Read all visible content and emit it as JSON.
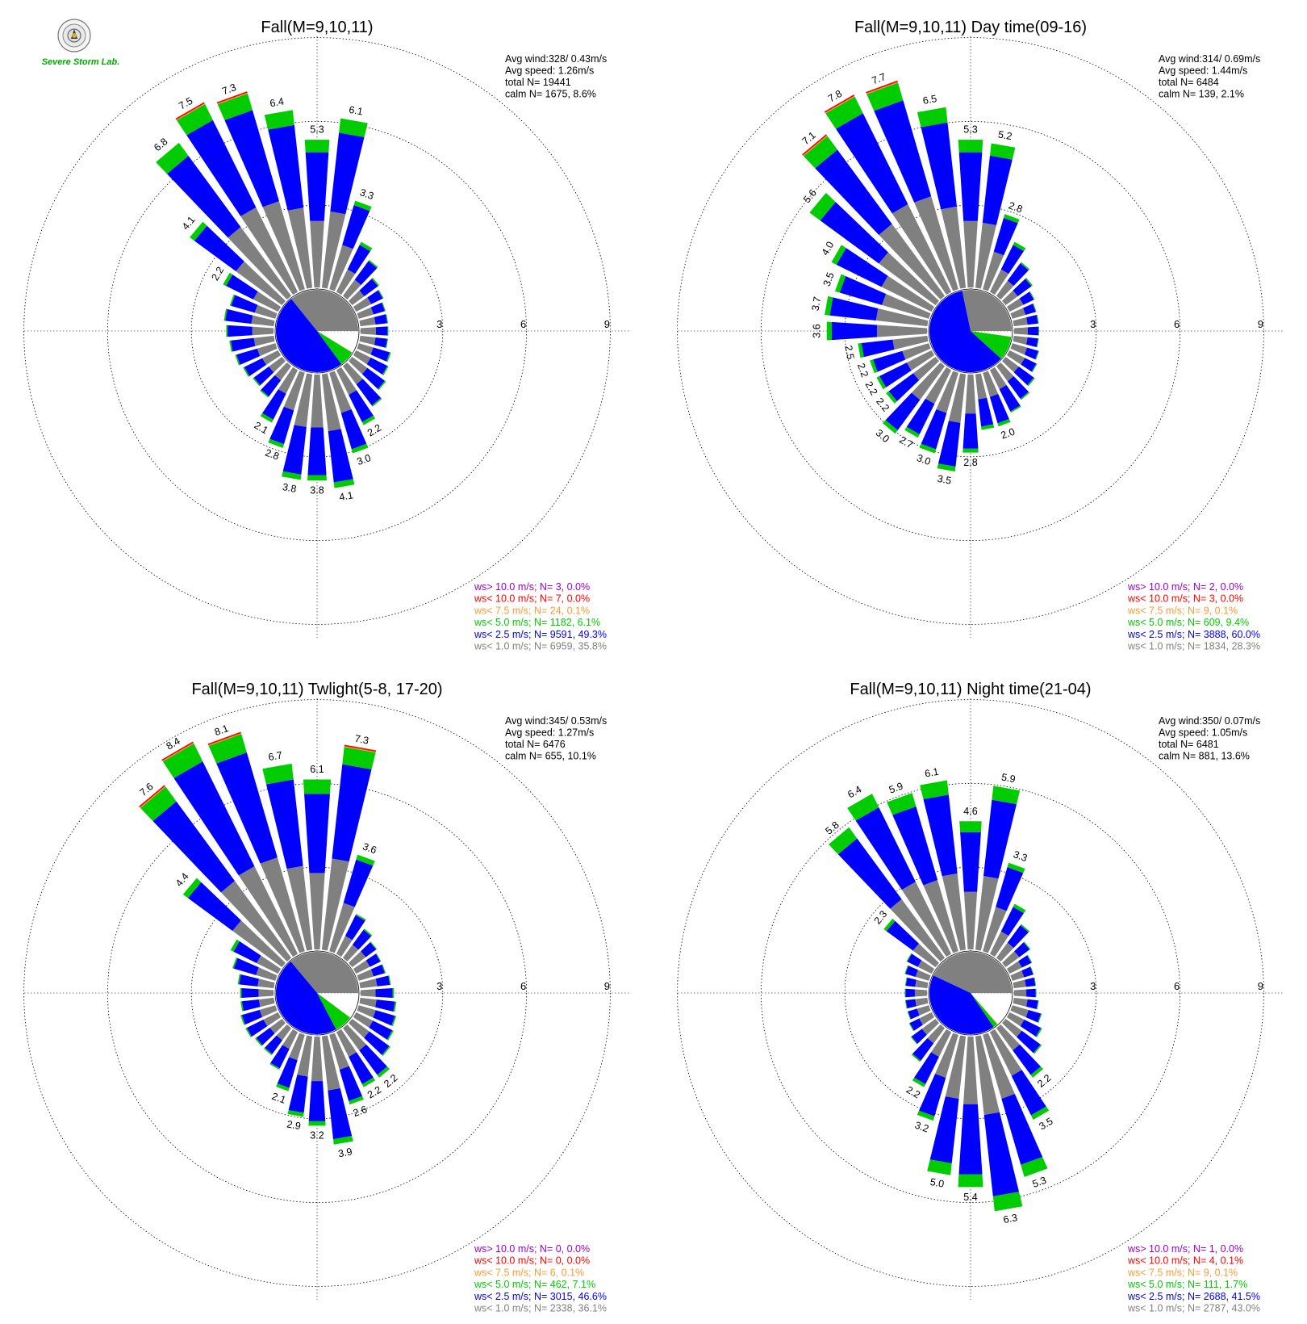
{
  "colors": {
    "ws_gt_10": "#9900cc",
    "ws_lt_10": "#ff0000",
    "ws_lt_7_5": "#ff9933",
    "ws_lt_5": "#00cc00",
    "ws_lt_2_5": "#0000ff",
    "ws_lt_1": "#808080"
  },
  "logo": {
    "text": "Severe Storm Lab."
  },
  "chart_data": [
    {
      "type": "wind-rose",
      "title": "Fall(M=9,10,11)",
      "stats": {
        "avg_wind": "Avg wind:328/ 0.43m/s",
        "avg_speed": "Avg speed: 1.26m/s",
        "total": "total N=      19441",
        "calm": "calm N=   1675,   8.6%"
      },
      "radial_ticks": [
        3,
        6,
        9
      ],
      "legend": [
        {
          "label": "ws> 10.0 m/s; N=     3,  0.0%",
          "color": "#9900cc"
        },
        {
          "label": "ws< 10.0 m/s; N=     7,  0.0%",
          "color": "#ff0000"
        },
        {
          "label": "ws<  7.5 m/s; N=    24,  0.1%",
          "color": "#ff9933"
        },
        {
          "label": "ws<  5.0 m/s; N=  1182,  6.1%",
          "color": "#00cc00"
        },
        {
          "label": "ws<  2.5 m/s; N=  9591, 49.3%",
          "color": "#0000ff"
        },
        {
          "label": "ws<  1.0 m/s; N=  6959, 35.8%",
          "color": "#808080"
        }
      ],
      "pie": {
        "gray": 35.8,
        "blue": 49.3,
        "green": 6.1,
        "orange": 0.1,
        "red": 0.0,
        "purple": 0.0
      },
      "bars": [
        {
          "dir": 0,
          "total": 5.3,
          "label": "5.3"
        },
        {
          "dir": 10,
          "total": 6.1,
          "label": "6.1"
        },
        {
          "dir": 20,
          "total": 3.3,
          "label": "3.3"
        },
        {
          "dir": 30,
          "total": 2.0
        },
        {
          "dir": 40,
          "total": 1.6
        },
        {
          "dir": 50,
          "total": 1.2
        },
        {
          "dir": 60,
          "total": 1.1
        },
        {
          "dir": 70,
          "total": 1.0
        },
        {
          "dir": 80,
          "total": 1.0
        },
        {
          "dir": 90,
          "total": 1.0
        },
        {
          "dir": 100,
          "total": 1.0
        },
        {
          "dir": 110,
          "total": 1.2
        },
        {
          "dir": 120,
          "total": 1.3
        },
        {
          "dir": 130,
          "total": 1.5
        },
        {
          "dir": 140,
          "total": 1.8
        },
        {
          "dir": 150,
          "total": 2.2,
          "label": "2.2"
        },
        {
          "dir": 160,
          "total": 3.0,
          "label": "3.0"
        },
        {
          "dir": 170,
          "total": 4.1,
          "label": "4.1"
        },
        {
          "dir": 180,
          "total": 3.8,
          "label": "3.8"
        },
        {
          "dir": 190,
          "total": 3.8,
          "label": "3.8"
        },
        {
          "dir": 200,
          "total": 2.8,
          "label": "2.8"
        },
        {
          "dir": 210,
          "total": 2.1,
          "label": "2.1"
        },
        {
          "dir": 220,
          "total": 1.4
        },
        {
          "dir": 230,
          "total": 1.3
        },
        {
          "dir": 240,
          "total": 1.4
        },
        {
          "dir": 250,
          "total": 1.5
        },
        {
          "dir": 260,
          "total": 1.6
        },
        {
          "dir": 270,
          "total": 1.7
        },
        {
          "dir": 280,
          "total": 1.8
        },
        {
          "dir": 290,
          "total": 1.7
        },
        {
          "dir": 300,
          "total": 2.2,
          "label": "2.2"
        },
        {
          "dir": 310,
          "total": 4.1,
          "label": "4.1"
        },
        {
          "dir": 320,
          "total": 6.8,
          "label": "6.8"
        },
        {
          "dir": 330,
          "total": 7.5,
          "label": "7.5"
        },
        {
          "dir": 340,
          "total": 7.3,
          "label": "7.3"
        },
        {
          "dir": 350,
          "total": 6.4,
          "label": "6.4"
        }
      ]
    },
    {
      "type": "wind-rose",
      "title": "Fall(M=9,10,11) Day time(09-16)",
      "stats": {
        "avg_wind": "Avg wind:314/ 0.69m/s",
        "avg_speed": "Avg speed: 1.44m/s",
        "total": "total N=       6484",
        "calm": "calm N=    139,   2.1%"
      },
      "radial_ticks": [
        3,
        6,
        9
      ],
      "legend": [
        {
          "label": "ws> 10.0 m/s; N=     2,  0.0%",
          "color": "#9900cc"
        },
        {
          "label": "ws< 10.0 m/s; N=     3,  0.0%",
          "color": "#ff0000"
        },
        {
          "label": "ws<  7.5 m/s; N=     9,  0.1%",
          "color": "#ff9933"
        },
        {
          "label": "ws<  5.0 m/s; N=   609,  9.4%",
          "color": "#00cc00"
        },
        {
          "label": "ws<  2.5 m/s; N=  3888, 60.0%",
          "color": "#0000ff"
        },
        {
          "label": "ws<  1.0 m/s; N=  1834, 28.3%",
          "color": "#808080"
        }
      ],
      "pie": {
        "gray": 28.3,
        "blue": 60.0,
        "green": 9.4,
        "orange": 0.1,
        "red": 0.0,
        "purple": 0.0
      },
      "bars": [
        {
          "dir": 0,
          "total": 5.3,
          "label": "5.3"
        },
        {
          "dir": 10,
          "total": 5.2,
          "label": "5.2"
        },
        {
          "dir": 20,
          "total": 2.8,
          "label": "2.8"
        },
        {
          "dir": 30,
          "total": 2.0
        },
        {
          "dir": 40,
          "total": 1.5
        },
        {
          "dir": 50,
          "total": 1.2
        },
        {
          "dir": 60,
          "total": 1.0
        },
        {
          "dir": 70,
          "total": 0.9
        },
        {
          "dir": 80,
          "total": 0.9
        },
        {
          "dir": 90,
          "total": 0.9
        },
        {
          "dir": 100,
          "total": 0.9
        },
        {
          "dir": 110,
          "total": 1.0
        },
        {
          "dir": 120,
          "total": 1.1
        },
        {
          "dir": 130,
          "total": 1.3
        },
        {
          "dir": 140,
          "total": 1.5
        },
        {
          "dir": 150,
          "total": 1.7
        },
        {
          "dir": 160,
          "total": 2.0,
          "label": "2.0"
        },
        {
          "dir": 170,
          "total": 2.0
        },
        {
          "dir": 180,
          "total": 2.8,
          "label": "2.8"
        },
        {
          "dir": 190,
          "total": 3.5,
          "label": "3.5"
        },
        {
          "dir": 200,
          "total": 3.0,
          "label": "3.0"
        },
        {
          "dir": 210,
          "total": 2.7,
          "label": "2.7"
        },
        {
          "dir": 220,
          "total": 3.0,
          "label": "3.0"
        },
        {
          "dir": 230,
          "total": 2.2,
          "label": "2.2"
        },
        {
          "dir": 240,
          "total": 2.2,
          "label": "2.2"
        },
        {
          "dir": 250,
          "total": 2.2,
          "label": "2.2"
        },
        {
          "dir": 260,
          "total": 2.5,
          "label": "2.5"
        },
        {
          "dir": 270,
          "total": 3.6,
          "label": "3.6"
        },
        {
          "dir": 280,
          "total": 3.7,
          "label": "3.7"
        },
        {
          "dir": 290,
          "total": 3.5,
          "label": "3.5"
        },
        {
          "dir": 300,
          "total": 4.0,
          "label": "4.0"
        },
        {
          "dir": 310,
          "total": 5.6,
          "label": "5.6"
        },
        {
          "dir": 320,
          "total": 7.1,
          "label": "7.1"
        },
        {
          "dir": 330,
          "total": 7.8,
          "label": "7.8"
        },
        {
          "dir": 340,
          "total": 7.7,
          "label": "7.7"
        },
        {
          "dir": 350,
          "total": 6.5,
          "label": "6.5"
        }
      ]
    },
    {
      "type": "wind-rose",
      "title": "Fall(M=9,10,11) Twlight(5-8, 17-20)",
      "stats": {
        "avg_wind": "Avg wind:345/ 0.53m/s",
        "avg_speed": "Avg speed: 1.27m/s",
        "total": "total N=       6476",
        "calm": "calm N=    655,  10.1%"
      },
      "radial_ticks": [
        3,
        6,
        9
      ],
      "legend": [
        {
          "label": "ws> 10.0 m/s; N=     0,  0.0%",
          "color": "#9900cc"
        },
        {
          "label": "ws< 10.0 m/s; N=     0,  0.0%",
          "color": "#ff0000"
        },
        {
          "label": "ws<  7.5 m/s; N=     6,  0.1%",
          "color": "#ff9933"
        },
        {
          "label": "ws<  5.0 m/s; N=   462,  7.1%",
          "color": "#00cc00"
        },
        {
          "label": "ws<  2.5 m/s; N=  3015, 46.6%",
          "color": "#0000ff"
        },
        {
          "label": "ws<  1.0 m/s; N=  2338, 36.1%",
          "color": "#808080"
        }
      ],
      "pie": {
        "gray": 36.1,
        "blue": 46.6,
        "green": 7.1,
        "orange": 0.1,
        "red": 0.0,
        "purple": 0.0
      },
      "bars": [
        {
          "dir": 0,
          "total": 6.1,
          "label": "6.1"
        },
        {
          "dir": 10,
          "total": 7.3,
          "label": "7.3"
        },
        {
          "dir": 20,
          "total": 3.6,
          "label": "3.6"
        },
        {
          "dir": 30,
          "total": 1.6
        },
        {
          "dir": 40,
          "total": 1.3
        },
        {
          "dir": 50,
          "total": 1.1
        },
        {
          "dir": 60,
          "total": 1.0
        },
        {
          "dir": 70,
          "total": 1.0
        },
        {
          "dir": 80,
          "total": 1.1
        },
        {
          "dir": 90,
          "total": 1.2
        },
        {
          "dir": 100,
          "total": 1.3
        },
        {
          "dir": 110,
          "total": 1.4
        },
        {
          "dir": 120,
          "total": 1.5
        },
        {
          "dir": 130,
          "total": 1.7
        },
        {
          "dir": 140,
          "total": 2.2,
          "label": "2.2"
        },
        {
          "dir": 150,
          "total": 2.2,
          "label": "2.2"
        },
        {
          "dir": 160,
          "total": 2.6,
          "label": "2.6"
        },
        {
          "dir": 170,
          "total": 3.9,
          "label": "3.9"
        },
        {
          "dir": 180,
          "total": 3.2,
          "label": "3.2"
        },
        {
          "dir": 190,
          "total": 2.9,
          "label": "2.9"
        },
        {
          "dir": 200,
          "total": 2.1,
          "label": "2.1"
        },
        {
          "dir": 210,
          "total": 1.5
        },
        {
          "dir": 220,
          "total": 1.2
        },
        {
          "dir": 230,
          "total": 1.2
        },
        {
          "dir": 240,
          "total": 1.3
        },
        {
          "dir": 250,
          "total": 1.3
        },
        {
          "dir": 260,
          "total": 1.2
        },
        {
          "dir": 270,
          "total": 1.2
        },
        {
          "dir": 280,
          "total": 1.3
        },
        {
          "dir": 290,
          "total": 1.6
        },
        {
          "dir": 300,
          "total": 1.9
        },
        {
          "dir": 310,
          "total": 4.4,
          "label": "4.4"
        },
        {
          "dir": 320,
          "total": 7.6,
          "label": "7.6"
        },
        {
          "dir": 330,
          "total": 8.4,
          "label": "8.4"
        },
        {
          "dir": 340,
          "total": 8.1,
          "label": "8.1"
        },
        {
          "dir": 350,
          "total": 6.7,
          "label": "6.7"
        }
      ]
    },
    {
      "type": "wind-rose",
      "title": "Fall(M=9,10,11) Night time(21-04)",
      "stats": {
        "avg_wind": "Avg wind:350/ 0.07m/s",
        "avg_speed": "Avg speed: 1.05m/s",
        "total": "total N=       6481",
        "calm": "calm N=    881,  13.6%"
      },
      "radial_ticks": [
        3,
        6,
        9
      ],
      "legend": [
        {
          "label": "ws> 10.0 m/s; N=     1,  0.0%",
          "color": "#9900cc"
        },
        {
          "label": "ws< 10.0 m/s; N=     4,  0.1%",
          "color": "#ff0000"
        },
        {
          "label": "ws<  7.5 m/s; N=     9,  0.1%",
          "color": "#ff9933"
        },
        {
          "label": "ws<  5.0 m/s; N=   111,  1.7%",
          "color": "#00cc00"
        },
        {
          "label": "ws<  2.5 m/s; N=  2688, 41.5%",
          "color": "#0000ff"
        },
        {
          "label": "ws<  1.0 m/s; N=  2787, 43.0%",
          "color": "#808080"
        }
      ],
      "pie": {
        "gray": 43.0,
        "blue": 41.5,
        "green": 1.7,
        "orange": 0.1,
        "red": 0.1,
        "purple": 0.0
      },
      "bars": [
        {
          "dir": 0,
          "total": 4.6,
          "label": "4.6"
        },
        {
          "dir": 10,
          "total": 5.9,
          "label": "5.9"
        },
        {
          "dir": 20,
          "total": 3.3,
          "label": "3.3"
        },
        {
          "dir": 30,
          "total": 2.0
        },
        {
          "dir": 40,
          "total": 1.5
        },
        {
          "dir": 50,
          "total": 1.1
        },
        {
          "dir": 60,
          "total": 0.9
        },
        {
          "dir": 70,
          "total": 0.8
        },
        {
          "dir": 80,
          "total": 0.8
        },
        {
          "dir": 90,
          "total": 0.8
        },
        {
          "dir": 100,
          "total": 0.9
        },
        {
          "dir": 110,
          "total": 1.1
        },
        {
          "dir": 120,
          "total": 1.3
        },
        {
          "dir": 130,
          "total": 1.6
        },
        {
          "dir": 140,
          "total": 2.2,
          "label": "2.2"
        },
        {
          "dir": 150,
          "total": 3.5,
          "label": "3.5"
        },
        {
          "dir": 160,
          "total": 5.3,
          "label": "5.3"
        },
        {
          "dir": 170,
          "total": 6.3,
          "label": "6.3"
        },
        {
          "dir": 180,
          "total": 5.4,
          "label": "5.4"
        },
        {
          "dir": 190,
          "total": 5.0,
          "label": "5.0"
        },
        {
          "dir": 200,
          "total": 3.2,
          "label": "3.2"
        },
        {
          "dir": 210,
          "total": 2.2,
          "label": "2.2"
        },
        {
          "dir": 220,
          "total": 1.5
        },
        {
          "dir": 230,
          "total": 1.1
        },
        {
          "dir": 240,
          "total": 0.9
        },
        {
          "dir": 250,
          "total": 0.8
        },
        {
          "dir": 260,
          "total": 0.8
        },
        {
          "dir": 270,
          "total": 0.8
        },
        {
          "dir": 280,
          "total": 0.8
        },
        {
          "dir": 290,
          "total": 0.9
        },
        {
          "dir": 300,
          "total": 1.0
        },
        {
          "dir": 310,
          "total": 2.3,
          "label": "2.3"
        },
        {
          "dir": 320,
          "total": 5.8,
          "label": "5.8"
        },
        {
          "dir": 330,
          "total": 6.4,
          "label": "6.4"
        },
        {
          "dir": 340,
          "total": 5.9,
          "label": "5.9"
        },
        {
          "dir": 350,
          "total": 6.1,
          "label": "6.1"
        }
      ]
    }
  ]
}
